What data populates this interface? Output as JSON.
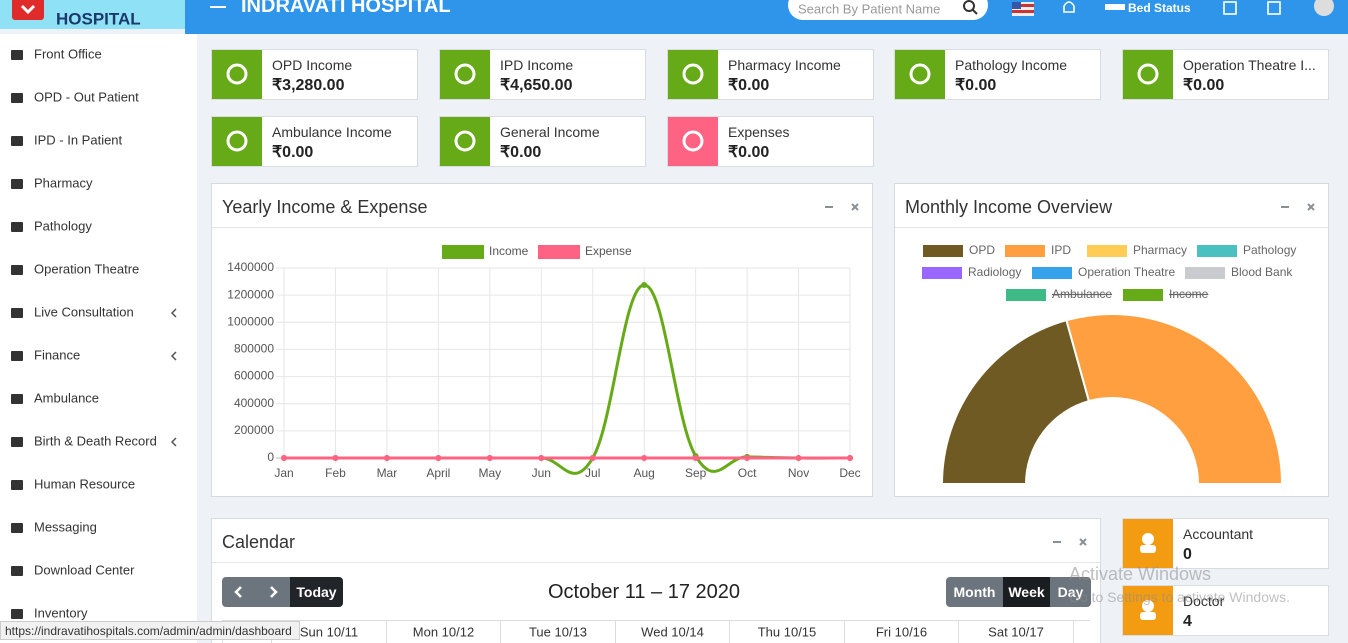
{
  "header": {
    "logo": "HOSPITAL",
    "title": "INDRAVATI HOSPITAL",
    "search_placeholder": "Search By Patient Name",
    "bed_status": "Bed Status"
  },
  "sidebar": [
    "Front Office",
    "OPD - Out Patient",
    "IPD - In Patient",
    "Pharmacy",
    "Pathology",
    "Operation Theatre",
    "Live Consultation",
    "Finance",
    "Ambulance",
    "Birth & Death Record",
    "Human Resource",
    "Messaging",
    "Download Center",
    "Inventory"
  ],
  "income_cards": [
    {
      "label": "OPD Income",
      "value": "₹3,280.00"
    },
    {
      "label": "IPD Income",
      "value": "₹4,650.00"
    },
    {
      "label": "Pharmacy Income",
      "value": "₹0.00"
    },
    {
      "label": "Pathology Income",
      "value": "₹0.00"
    },
    {
      "label": "Operation Theatre I...",
      "value": "₹0.00"
    },
    {
      "label": "Ambulance Income",
      "value": "₹0.00"
    },
    {
      "label": "General Income",
      "value": "₹0.00"
    },
    {
      "label": "Expenses",
      "value": "₹0.00"
    }
  ],
  "chart_data": [
    {
      "type": "line",
      "title": "Yearly Income & Expense",
      "categories": [
        "Jan",
        "Feb",
        "Mar",
        "April",
        "May",
        "Jun",
        "Jul",
        "Aug",
        "Sep",
        "Oct",
        "Nov",
        "Dec"
      ],
      "series": [
        {
          "name": "Income",
          "color": "#66aa18",
          "values": [
            0,
            0,
            0,
            0,
            0,
            0,
            0,
            1275000,
            15000,
            7930,
            0,
            0
          ]
        },
        {
          "name": "Expense",
          "color": "#ff6384",
          "values": [
            0,
            0,
            0,
            0,
            0,
            0,
            0,
            0,
            0,
            0,
            0,
            0
          ]
        }
      ],
      "ylim": [
        0,
        1400000
      ],
      "yticks": [
        0,
        200000,
        400000,
        600000,
        800000,
        1000000,
        1200000,
        1400000
      ],
      "grid": true,
      "legend": "top"
    },
    {
      "type": "doughnut",
      "title": "Monthly Income Overview",
      "categories": [
        "OPD",
        "IPD",
        "Pharmacy",
        "Pathology",
        "Radiology",
        "Operation Theatre",
        "Blood Bank",
        "Ambulance",
        "Income"
      ],
      "values": [
        3280,
        4650,
        0,
        0,
        0,
        0,
        0,
        0,
        null
      ],
      "colors": [
        "#6e5a22",
        "#ff9f40",
        "#ffcd56",
        "#4bc0c0",
        "#9966ff",
        "#36a2eb",
        "#c9cbcf",
        "#3dba85",
        "#66aa18"
      ],
      "hidden": [
        false,
        false,
        false,
        false,
        false,
        false,
        false,
        true,
        true
      ],
      "half": true,
      "legend": "top"
    }
  ],
  "calendar": {
    "title": "Calendar",
    "today": "Today",
    "range": "October 11 – 17 2020",
    "views": [
      "Month",
      "Week",
      "Day"
    ],
    "active_view": "Week",
    "days": [
      "Sun 10/11",
      "Mon 10/12",
      "Tue 10/13",
      "Wed 10/14",
      "Thu 10/15",
      "Fri 10/16",
      "Sat 10/17"
    ]
  },
  "staff_cards": [
    {
      "label": "Accountant",
      "value": 0
    },
    {
      "label": "Doctor",
      "value": 4
    }
  ],
  "watermark": {
    "title": "Activate Windows",
    "text": "Go to Settings to activate Windows."
  },
  "status_url": "https://indravatihospitals.com/admin/admin/dashboard"
}
